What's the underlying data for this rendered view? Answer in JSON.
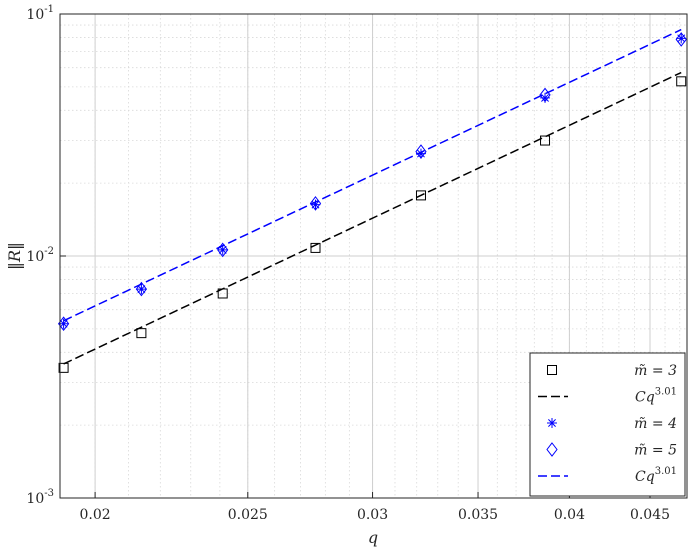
{
  "chart_data": {
    "type": "scatter",
    "x_scale": "log",
    "y_scale": "log",
    "xlim": [
      0.019,
      0.0475
    ],
    "ylim": [
      0.001,
      0.1
    ],
    "xlabel": "q",
    "ylabel": "‖R‖",
    "grid": true,
    "minor_grid": true,
    "legend_position": "bottom-right",
    "x_ticks": [
      {
        "value": 0.02,
        "label": "0.02"
      },
      {
        "value": 0.025,
        "label": "0.025"
      },
      {
        "value": 0.03,
        "label": "0.03"
      },
      {
        "value": 0.035,
        "label": "0.035"
      },
      {
        "value": 0.04,
        "label": "0.04"
      },
      {
        "value": 0.045,
        "label": "0.045"
      }
    ],
    "y_ticks": [
      {
        "value": 0.001,
        "base": "10",
        "exp": "-3"
      },
      {
        "value": 0.01,
        "base": "10",
        "exp": "-2"
      },
      {
        "value": 0.1,
        "base": "10",
        "exp": "-1"
      }
    ],
    "series": [
      {
        "name": "m̃ = 3",
        "marker": "square",
        "color": "#000000",
        "x": [
          0.0191,
          0.0214,
          0.0241,
          0.0276,
          0.0322,
          0.0386,
          0.0471
        ],
        "y": [
          0.00345,
          0.0048,
          0.007,
          0.0108,
          0.0178,
          0.03,
          0.0527
        ]
      },
      {
        "name": "Cq^{3.01}",
        "line": "dashed",
        "color": "#000000",
        "x": [
          0.0191,
          0.0471
        ],
        "y": [
          0.00358,
          0.0573
        ]
      },
      {
        "name": "m̃ = 4",
        "marker": "asterisk",
        "color": "#0000ff",
        "x": [
          0.0191,
          0.0214,
          0.0241,
          0.0276,
          0.0322,
          0.0386,
          0.0471
        ],
        "y": [
          0.00525,
          0.0073,
          0.0106,
          0.0163,
          0.0265,
          0.045,
          0.0793
        ]
      },
      {
        "name": "m̃ = 5",
        "marker": "diamond",
        "color": "#0000ff",
        "x": [
          0.0191,
          0.0214,
          0.0241,
          0.0276,
          0.0322,
          0.0386,
          0.0471
        ],
        "y": [
          0.00525,
          0.0073,
          0.0106,
          0.0165,
          0.027,
          0.0463,
          0.0785
        ]
      },
      {
        "name": "Cq^{3.01}",
        "line": "dashed",
        "color": "#0000ff",
        "x": [
          0.0191,
          0.0471
        ],
        "y": [
          0.0054,
          0.0862
        ]
      }
    ],
    "legend": [
      {
        "symbol": "square",
        "color": "#000000",
        "base": "m̃ = 3",
        "sup": ""
      },
      {
        "symbol": "dashed",
        "color": "#000000",
        "base": "Cq",
        "sup": "3.01"
      },
      {
        "symbol": "asterisk",
        "color": "#0000ff",
        "base": "m̃ = 4",
        "sup": ""
      },
      {
        "symbol": "diamond",
        "color": "#0000ff",
        "base": "m̃ = 5",
        "sup": ""
      },
      {
        "symbol": "dashed",
        "color": "#0000ff",
        "base": "Cq",
        "sup": "3.01"
      }
    ]
  }
}
